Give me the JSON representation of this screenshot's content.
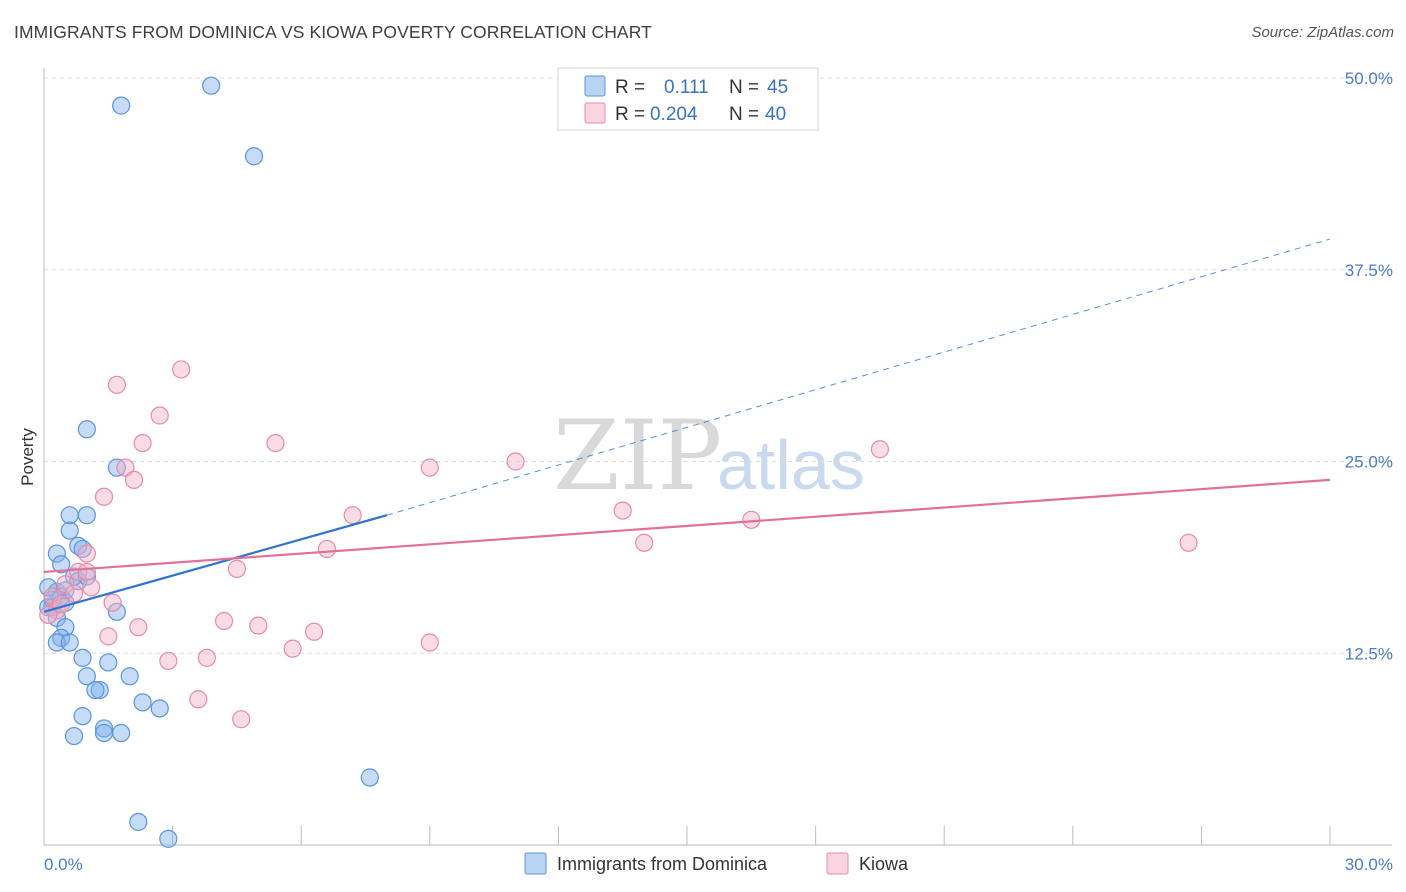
{
  "header": {
    "title": "IMMIGRANTS FROM DOMINICA VS KIOWA POVERTY CORRELATION CHART",
    "source": "Source: ZipAtlas.com"
  },
  "watermark": {
    "zip": "ZIP",
    "atlas": "atlas"
  },
  "legend": {
    "rows": [
      {
        "r_label": "R =",
        "r_value": "0.111",
        "n_label": "N =",
        "n_value": "45"
      },
      {
        "r_label": "R =",
        "r_value": "0.204",
        "n_label": "N =",
        "n_value": "40"
      }
    ]
  },
  "chart_data": {
    "type": "scatter",
    "title": "IMMIGRANTS FROM DOMINICA VS KIOWA POVERTY CORRELATION CHART",
    "xlabel": "",
    "ylabel": "Poverty",
    "xlim": [
      0,
      30
    ],
    "ylim": [
      0,
      50
    ],
    "x_tick_labels": [
      "0.0%",
      "30.0%"
    ],
    "y_ticks": [
      12.5,
      25.0,
      37.5,
      50.0
    ],
    "y_tick_labels": [
      "12.5%",
      "25.0%",
      "37.5%",
      "50.0%"
    ],
    "grid": true,
    "series": [
      {
        "name": "Immigrants from Dominica",
        "color": "#7fb0ea",
        "edge": "#5b95dc",
        "trend_color": "#2f74d0",
        "trend": {
          "x0": 0,
          "y0": 15.2,
          "x1": 8.0,
          "y1": 21.5,
          "dash_to_x": 30,
          "dash_to_y": 39.5
        },
        "points": [
          [
            0.2,
            16.0
          ],
          [
            0.3,
            16.5
          ],
          [
            0.2,
            15.5
          ],
          [
            0.4,
            16.2
          ],
          [
            0.1,
            16.8
          ],
          [
            0.5,
            15.8
          ],
          [
            0.3,
            19.0
          ],
          [
            0.6,
            20.5
          ],
          [
            0.8,
            19.5
          ],
          [
            0.9,
            19.3
          ],
          [
            0.6,
            21.5
          ],
          [
            1.0,
            21.5
          ],
          [
            0.4,
            18.3
          ],
          [
            0.7,
            17.5
          ],
          [
            0.8,
            17.2
          ],
          [
            1.0,
            17.5
          ],
          [
            0.5,
            16.6
          ],
          [
            0.3,
            14.8
          ],
          [
            0.5,
            14.2
          ],
          [
            0.4,
            13.5
          ],
          [
            0.3,
            13.2
          ],
          [
            0.6,
            13.2
          ],
          [
            0.9,
            12.2
          ],
          [
            1.0,
            11.0
          ],
          [
            1.5,
            11.9
          ],
          [
            1.3,
            10.1
          ],
          [
            1.2,
            10.1
          ],
          [
            2.0,
            11.0
          ],
          [
            0.9,
            8.4
          ],
          [
            2.3,
            9.3
          ],
          [
            2.7,
            8.9
          ],
          [
            0.7,
            7.1
          ],
          [
            1.4,
            7.6
          ],
          [
            1.4,
            7.3
          ],
          [
            1.8,
            7.3
          ],
          [
            1.7,
            15.2
          ],
          [
            1.0,
            27.1
          ],
          [
            1.7,
            24.6
          ],
          [
            1.8,
            48.2
          ],
          [
            3.9,
            49.5
          ],
          [
            4.9,
            44.9
          ],
          [
            7.6,
            4.4
          ],
          [
            2.2,
            1.5
          ],
          [
            2.9,
            0.4
          ],
          [
            0.1,
            15.5
          ]
        ]
      },
      {
        "name": "Kiowa",
        "color": "#f5b2c8",
        "edge": "#e88aaa",
        "trend_color": "#e2709a",
        "trend": {
          "x0": 0,
          "y0": 17.8,
          "x1": 30,
          "y1": 23.8
        },
        "points": [
          [
            0.2,
            16.2
          ],
          [
            0.3,
            15.3
          ],
          [
            0.4,
            15.7
          ],
          [
            0.1,
            15.0
          ],
          [
            0.5,
            17.0
          ],
          [
            0.8,
            17.8
          ],
          [
            1.0,
            17.8
          ],
          [
            1.1,
            16.8
          ],
          [
            1.0,
            19.0
          ],
          [
            0.7,
            16.4
          ],
          [
            1.4,
            22.7
          ],
          [
            1.6,
            15.8
          ],
          [
            1.5,
            13.6
          ],
          [
            1.7,
            30.0
          ],
          [
            1.9,
            24.6
          ],
          [
            2.1,
            23.8
          ],
          [
            2.3,
            26.2
          ],
          [
            2.2,
            14.2
          ],
          [
            2.7,
            28.0
          ],
          [
            2.9,
            12.0
          ],
          [
            3.2,
            31.0
          ],
          [
            3.6,
            9.5
          ],
          [
            3.8,
            12.2
          ],
          [
            4.2,
            14.6
          ],
          [
            4.5,
            18.0
          ],
          [
            4.6,
            8.2
          ],
          [
            5.0,
            14.3
          ],
          [
            5.4,
            26.2
          ],
          [
            5.8,
            12.8
          ],
          [
            6.3,
            13.9
          ],
          [
            6.6,
            19.3
          ],
          [
            7.2,
            21.5
          ],
          [
            9.0,
            13.2
          ],
          [
            9.0,
            24.6
          ],
          [
            11.0,
            25.0
          ],
          [
            13.5,
            21.8
          ],
          [
            14.0,
            19.7
          ],
          [
            16.5,
            21.2
          ],
          [
            19.5,
            25.8
          ],
          [
            26.7,
            19.7
          ]
        ]
      }
    ]
  }
}
